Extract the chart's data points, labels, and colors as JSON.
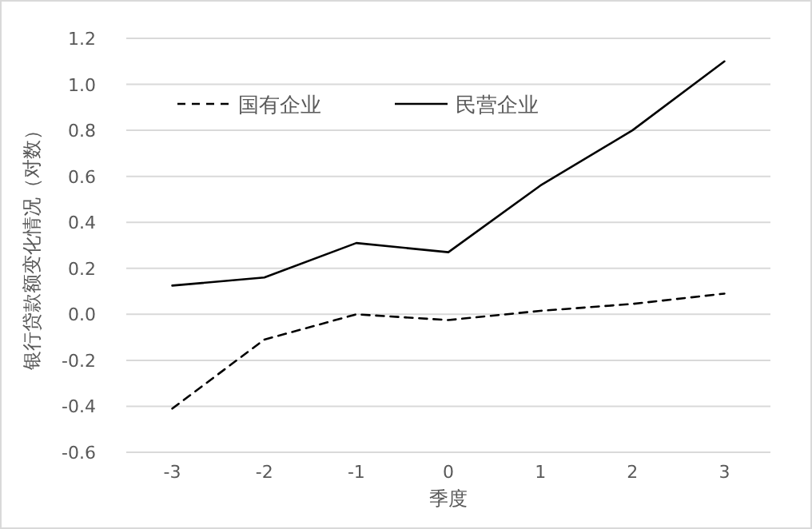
{
  "chart_data": {
    "type": "line",
    "xlabel": "季度",
    "ylabel": "银行贷款额变化情况（对数）",
    "categories": [
      "-3",
      "-2",
      "-1",
      "0",
      "1",
      "2",
      "3"
    ],
    "series": [
      {
        "name": "国有企业",
        "color": "#000000",
        "line_style": "dashed",
        "values": [
          -0.41,
          -0.11,
          0,
          -0.025,
          0.015,
          0.045,
          0.09
        ]
      },
      {
        "name": "民营企业",
        "color": "#000000",
        "line_style": "solid",
        "values": [
          0.125,
          0.16,
          0.31,
          0.27,
          0.56,
          0.8,
          1.1
        ]
      }
    ],
    "ylim": [
      -0.6,
      1.2
    ],
    "yticks": [
      {
        "value": -0.6,
        "label": "-0.6"
      },
      {
        "value": -0.4,
        "label": "-0.4"
      },
      {
        "value": -0.2,
        "label": "-0.2"
      },
      {
        "value": 0,
        "label": "0.0"
      },
      {
        "value": 0.2,
        "label": "0.2"
      },
      {
        "value": 0.4,
        "label": "0.4"
      },
      {
        "value": 0.6,
        "label": "0.6"
      },
      {
        "value": 0.8,
        "label": "0.8"
      },
      {
        "value": 1.0,
        "label": "1.0"
      },
      {
        "value": 1.2,
        "label": "1.2"
      }
    ],
    "grid": "y",
    "legend": "top left",
    "marker": "none"
  }
}
